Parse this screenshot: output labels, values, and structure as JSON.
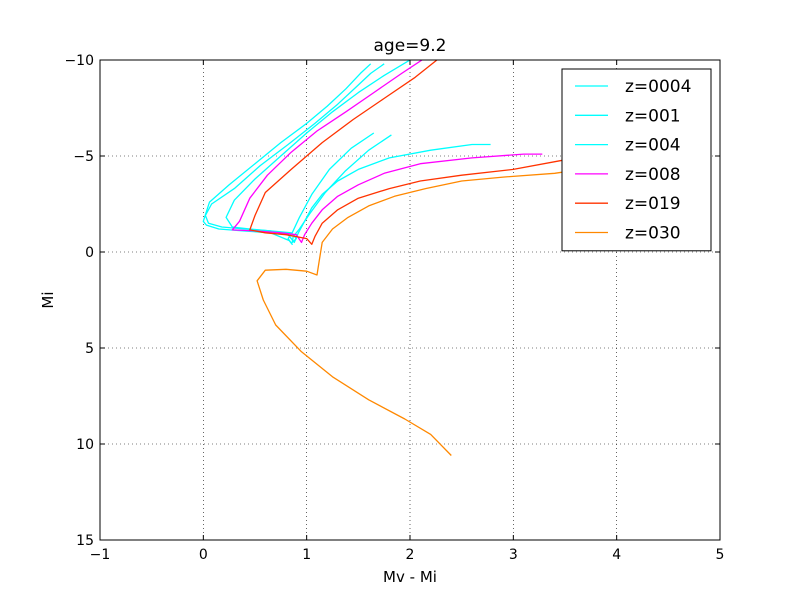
{
  "chart_data": {
    "type": "line",
    "title": "age=9.2",
    "xlabel": "Mv - Mi",
    "ylabel": "Mi",
    "xlim": [
      -1,
      5
    ],
    "ylim": [
      15,
      -10
    ],
    "y_inverted": true,
    "xticks": [
      -1,
      0,
      1,
      2,
      3,
      4,
      5
    ],
    "yticks": [
      -10,
      -5,
      0,
      5,
      10,
      15
    ],
    "xtick_labels": [
      "−1",
      "0",
      "1",
      "2",
      "3",
      "4",
      "5"
    ],
    "ytick_labels": [
      "−10",
      "−5",
      "0",
      "5",
      "10",
      "15"
    ],
    "grid": true,
    "legend_position": "top-right",
    "series": [
      {
        "name": "z=0004",
        "color": "#00ffff",
        "x": [
          1.65,
          1.43,
          1.22,
          1.05,
          0.93,
          0.86,
          0.82,
          0.86,
          0.83,
          0.65,
          0.38,
          0.15,
          0.03,
          0.0,
          0.06,
          0.25,
          0.5,
          0.75,
          1.0,
          1.2,
          1.38,
          1.52,
          1.62
        ],
        "y": [
          -6.2,
          -5.4,
          -4.3,
          -3.0,
          -1.8,
          -1.0,
          -0.7,
          -0.4,
          -0.6,
          -1.0,
          -1.1,
          -1.2,
          -1.4,
          -1.6,
          -2.6,
          -3.5,
          -4.6,
          -5.7,
          -6.7,
          -7.6,
          -8.5,
          -9.3,
          -9.8
        ]
      },
      {
        "name": "z=001",
        "color": "#00ffff",
        "x": [
          1.82,
          1.6,
          1.37,
          1.18,
          1.03,
          0.93,
          0.87,
          0.86,
          0.9,
          0.85,
          0.65,
          0.4,
          0.18,
          0.05,
          0.02,
          0.08,
          0.3,
          0.55,
          0.82,
          1.08,
          1.3,
          1.48,
          1.62,
          1.75
        ],
        "y": [
          -6.1,
          -5.3,
          -4.2,
          -3.1,
          -2.0,
          -1.2,
          -0.8,
          -0.5,
          -0.7,
          -1.0,
          -1.1,
          -1.2,
          -1.3,
          -1.5,
          -1.9,
          -2.5,
          -3.3,
          -4.5,
          -5.6,
          -6.7,
          -7.7,
          -8.6,
          -9.3,
          -9.8
        ]
      },
      {
        "name": "z=004",
        "color": "#00ffff",
        "x": [
          2.78,
          2.6,
          2.2,
          1.8,
          1.5,
          1.3,
          1.15,
          1.05,
          0.98,
          0.92,
          0.88,
          0.82,
          0.65,
          0.45,
          0.28,
          0.22,
          0.3,
          0.5,
          0.75,
          1.0,
          1.25,
          1.5,
          1.75,
          2.0
        ],
        "y": [
          -5.6,
          -5.6,
          -5.3,
          -4.9,
          -4.3,
          -3.7,
          -3.0,
          -2.3,
          -1.6,
          -1.0,
          -0.5,
          -0.9,
          -1.1,
          -1.2,
          -1.3,
          -1.8,
          -2.7,
          -3.8,
          -5.0,
          -6.2,
          -7.3,
          -8.3,
          -9.2,
          -10.0
        ]
      },
      {
        "name": "z=008",
        "color": "#ff00ff",
        "x": [
          3.28,
          3.1,
          2.6,
          2.1,
          1.75,
          1.5,
          1.3,
          1.15,
          1.05,
          0.98,
          0.95,
          0.9,
          0.75,
          0.5,
          0.28,
          0.35,
          0.45,
          0.62,
          0.85,
          1.1,
          1.38,
          1.65,
          1.92,
          2.2
        ],
        "y": [
          -5.1,
          -5.1,
          -4.9,
          -4.6,
          -4.1,
          -3.5,
          -2.9,
          -2.2,
          -1.5,
          -0.9,
          -0.5,
          -0.9,
          -1.0,
          -1.1,
          -1.15,
          -1.6,
          -2.8,
          -4.0,
          -5.2,
          -6.3,
          -7.3,
          -8.3,
          -9.3,
          -10.3
        ]
      },
      {
        "name": "z=019",
        "color": "#ff3300",
        "x": [
          3.9,
          3.5,
          3.0,
          2.5,
          2.1,
          1.8,
          1.5,
          1.3,
          1.15,
          1.08,
          1.05,
          1.0,
          0.8,
          0.6,
          0.45,
          0.5,
          0.6,
          0.85,
          1.15,
          1.45,
          1.75,
          2.05,
          2.4
        ],
        "y": [
          -4.9,
          -4.8,
          -4.3,
          -4.0,
          -3.7,
          -3.3,
          -2.8,
          -2.2,
          -1.5,
          -0.8,
          -0.4,
          -0.7,
          -0.9,
          -1.0,
          -1.15,
          -1.9,
          -3.1,
          -4.3,
          -5.7,
          -6.9,
          -8.0,
          -9.1,
          -10.6
        ]
      },
      {
        "name": "z=030",
        "color": "#ff8800",
        "x": [
          3.9,
          3.4,
          2.9,
          2.5,
          2.15,
          1.85,
          1.6,
          1.4,
          1.25,
          1.15,
          1.12,
          1.1,
          1.0,
          0.8,
          0.6,
          0.52,
          0.58,
          0.7,
          0.95,
          1.25,
          1.6,
          1.95,
          2.2,
          2.4
        ],
        "y": [
          -4.5,
          -4.1,
          -3.9,
          -3.7,
          -3.3,
          -2.9,
          -2.4,
          -1.8,
          -1.2,
          -0.5,
          0.5,
          1.2,
          1.0,
          0.9,
          0.95,
          1.5,
          2.5,
          3.8,
          5.2,
          6.5,
          7.7,
          8.7,
          9.5,
          10.6
        ]
      }
    ]
  }
}
